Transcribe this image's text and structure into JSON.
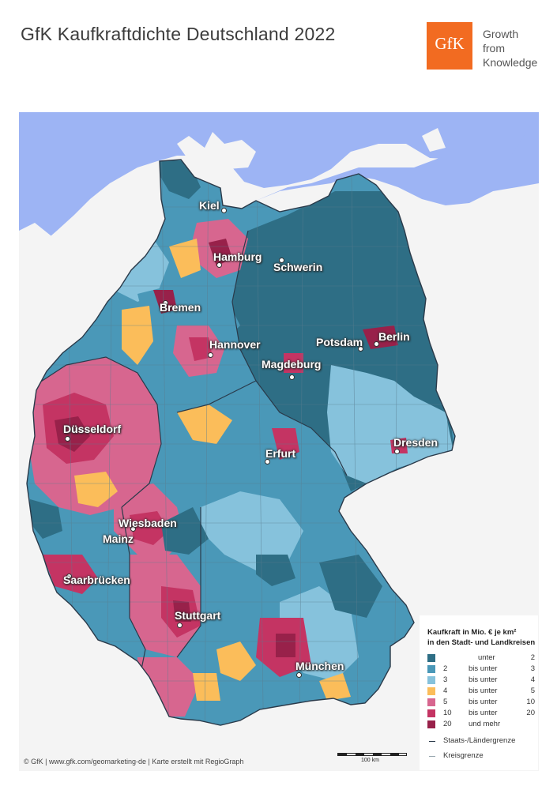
{
  "title": "GfK Kaufkraftdichte Deutschland 2022",
  "logo": {
    "text": "GfK",
    "tagline": [
      "Growth",
      "from",
      "Knowledge"
    ],
    "color": "#f26b21"
  },
  "colors": {
    "sea": "#9db4f4",
    "land_outside": "#f4f4f4",
    "border": "#2a3a4a",
    "classes": [
      "#2e6e85",
      "#4a98b8",
      "#86c2dc",
      "#fbbd5a",
      "#d7668f",
      "#c43463",
      "#98214a"
    ]
  },
  "cities": [
    {
      "name": "Kiel"
    },
    {
      "name": "Hamburg"
    },
    {
      "name": "Schwerin"
    },
    {
      "name": "Bremen"
    },
    {
      "name": "Hannover"
    },
    {
      "name": "Potsdam"
    },
    {
      "name": "Berlin"
    },
    {
      "name": "Magdeburg"
    },
    {
      "name": "Düsseldorf"
    },
    {
      "name": "Erfurt"
    },
    {
      "name": "Dresden"
    },
    {
      "name": "Wiesbaden"
    },
    {
      "name": "Mainz"
    },
    {
      "name": "Saarbrücken"
    },
    {
      "name": "Stuttgart"
    },
    {
      "name": "München"
    }
  ],
  "legend": {
    "title_line1": "Kaufkraft in Mio. € je km²",
    "title_line2": "in den Stadt- und Landkreisen",
    "rows": [
      {
        "from": "",
        "between": "unter",
        "to": "2"
      },
      {
        "from": "2",
        "between": "bis unter",
        "to": "3"
      },
      {
        "from": "3",
        "between": "bis unter",
        "to": "4"
      },
      {
        "from": "4",
        "between": "bis unter",
        "to": "5"
      },
      {
        "from": "5",
        "between": "bis unter",
        "to": "10"
      },
      {
        "from": "10",
        "between": "bis unter",
        "to": "20"
      },
      {
        "from": "20",
        "between": "und mehr",
        "to": ""
      }
    ],
    "line_state": "Staats-/Ländergrenze",
    "line_district": "Kreisgrenze"
  },
  "scale_label": "100 km",
  "credit": "© GfK | www.gfk.com/geomarketing-de | Karte erstellt mit RegioGraph"
}
